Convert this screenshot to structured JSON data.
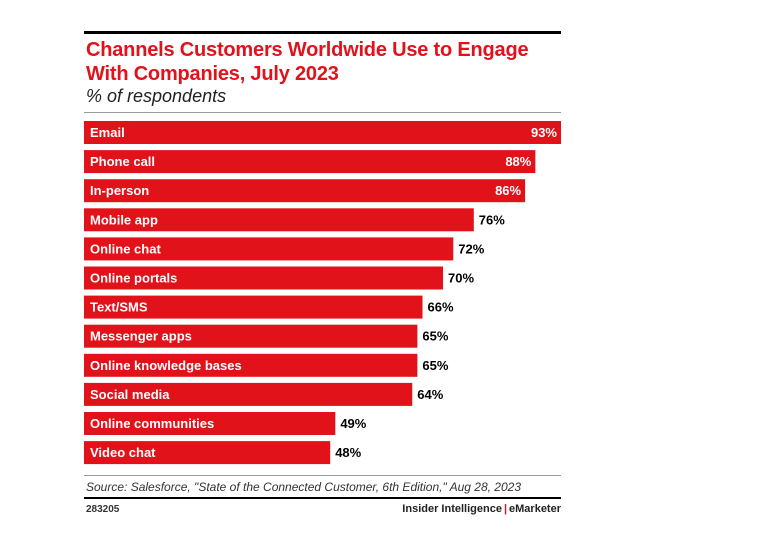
{
  "title": "Channels Customers Worldwide Use to Engage With Companies, July 2023",
  "subtitle": "% of respondents",
  "source": "Source: Salesforce, \"State of the Connected Customer, 6th Edition,\" Aug 28, 2023",
  "chart_id": "283205",
  "brand": {
    "left": "Insider Intelligence",
    "separator": "|",
    "right": "eMarketer"
  },
  "colors": {
    "bar": "#e1121a",
    "title": "#e1121a"
  },
  "chart_data": {
    "type": "bar",
    "orientation": "horizontal",
    "title": "Channels Customers Worldwide Use to Engage With Companies, July 2023",
    "subtitle": "% of respondents",
    "categories": [
      "Email",
      "Phone call",
      "In-person",
      "Mobile app",
      "Online chat",
      "Online portals",
      "Text/SMS",
      "Messenger apps",
      "Online knowledge bases",
      "Social media",
      "Online communities",
      "Video chat"
    ],
    "values": [
      93,
      88,
      86,
      76,
      72,
      70,
      66,
      65,
      65,
      64,
      49,
      48
    ],
    "value_labels": [
      "93%",
      "88%",
      "86%",
      "76%",
      "72%",
      "70%",
      "66%",
      "65%",
      "65%",
      "64%",
      "49%",
      "48%"
    ],
    "xlim": [
      0,
      93
    ],
    "grid": false,
    "legend": "none"
  }
}
